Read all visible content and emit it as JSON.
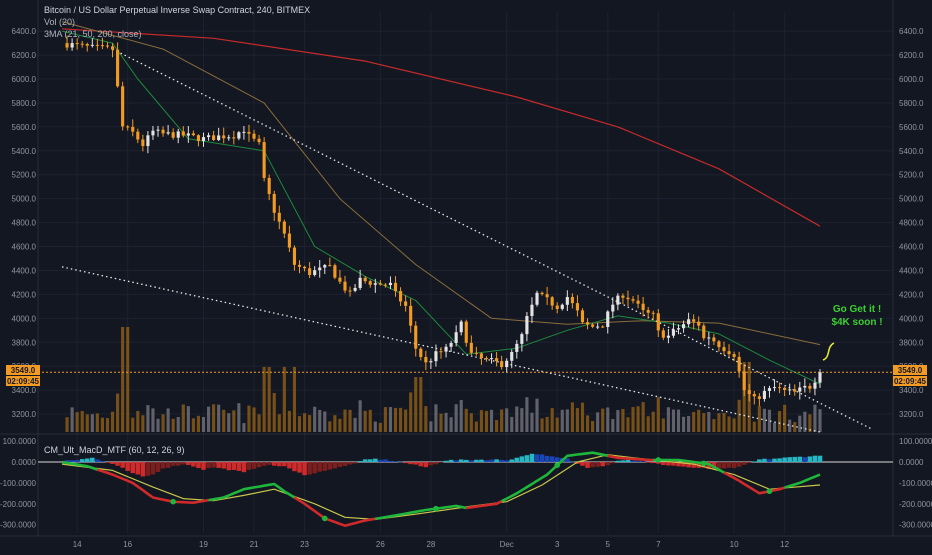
{
  "header": {
    "title": "Bitcoin / US Dollar Perpetual Inverse Swap Contract, 240, BITMEX",
    "vol_label": "Vol (20)",
    "ma_label": "3MA (21, 50, 200, close)"
  },
  "annotation": {
    "line1": "Go Get it !",
    "line2": "$4K soon !"
  },
  "price_tags": {
    "last_price": "3549.0",
    "countdown": "02:09:45"
  },
  "colors": {
    "background": "#131722",
    "candle_up": "#e3e3e3",
    "candle_down": "#f29a22",
    "ma21": "#1e8a3c",
    "ma50": "#8a6d3b",
    "ma200": "#c62a2a",
    "annotation": "#39d12f",
    "macd_line": "#1fb63c",
    "signal_line": "#c8c64a",
    "hist_pos": "#25b7c4",
    "hist_pos_weak": "#1846b8",
    "hist_neg": "#d12a2a",
    "hist_neg_weak": "#7a1e1e"
  },
  "chart_data": [
    {
      "type": "candlestick",
      "title": "Bitcoin / US Dollar Perpetual Inverse Swap Contract, 240, BITMEX",
      "x_tick_labels": [
        "14",
        "16",
        "19",
        "21",
        "23",
        "26",
        "28",
        "Dec",
        "3",
        "5",
        "7",
        "10",
        "12"
      ],
      "y_tick_labels": [
        "3200.0",
        "3400.0",
        "3600.0",
        "3800.0",
        "4000.0",
        "4200.0",
        "4400.0",
        "4600.0",
        "4800.0",
        "5000.0",
        "5200.0",
        "5400.0",
        "5600.0",
        "5800.0",
        "6000.0",
        "6200.0",
        "6400.0"
      ],
      "ylim": [
        3050,
        6560
      ],
      "last_price": 3549,
      "close_path": [
        [
          0,
          6300
        ],
        [
          6,
          6260
        ],
        [
          10,
          6250
        ],
        [
          12,
          5600
        ],
        [
          14,
          5550
        ],
        [
          16,
          5450
        ],
        [
          18,
          5560
        ],
        [
          20,
          5540
        ],
        [
          24,
          5530
        ],
        [
          28,
          5500
        ],
        [
          31,
          5520
        ],
        [
          34,
          5530
        ],
        [
          36,
          5580
        ],
        [
          37,
          5520
        ],
        [
          39,
          5450
        ],
        [
          40,
          5150
        ],
        [
          42,
          4900
        ],
        [
          44,
          4700
        ],
        [
          46,
          4450
        ],
        [
          49,
          4380
        ],
        [
          53,
          4430
        ],
        [
          55,
          4300
        ],
        [
          57,
          4200
        ],
        [
          59,
          4320
        ],
        [
          62,
          4290
        ],
        [
          65,
          4280
        ],
        [
          66,
          4200
        ],
        [
          68,
          4100
        ],
        [
          70,
          3750
        ],
        [
          72,
          3620
        ],
        [
          74,
          3700
        ],
        [
          76,
          3740
        ],
        [
          78,
          3860
        ],
        [
          79,
          3950
        ],
        [
          81,
          3700
        ],
        [
          83,
          3660
        ],
        [
          85,
          3640
        ],
        [
          87,
          3620
        ],
        [
          89,
          3700
        ],
        [
          91,
          3850
        ],
        [
          92,
          4000
        ],
        [
          94,
          4200
        ],
        [
          96,
          4150
        ],
        [
          98,
          4100
        ],
        [
          100,
          4180
        ],
        [
          102,
          4050
        ],
        [
          103,
          3950
        ],
        [
          105,
          3930
        ],
        [
          107,
          3950
        ],
        [
          109,
          4120
        ],
        [
          111,
          4200
        ],
        [
          113,
          4150
        ],
        [
          115,
          4050
        ],
        [
          117,
          4020
        ],
        [
          118,
          3880
        ],
        [
          120,
          3850
        ],
        [
          122,
          3920
        ],
        [
          124,
          3980
        ],
        [
          126,
          3950
        ],
        [
          127,
          3830
        ],
        [
          128,
          3850
        ],
        [
          130,
          3780
        ],
        [
          131,
          3750
        ],
        [
          133,
          3700
        ],
        [
          135,
          3400
        ],
        [
          137,
          3320
        ],
        [
          139,
          3380
        ],
        [
          141,
          3420
        ],
        [
          143,
          3390
        ],
        [
          145,
          3380
        ],
        [
          147,
          3420
        ],
        [
          148,
          3430
        ],
        [
          150,
          3549
        ]
      ],
      "ma21_path": [
        [
          0,
          6400
        ],
        [
          10,
          6300
        ],
        [
          15,
          6000
        ],
        [
          25,
          5500
        ],
        [
          40,
          5400
        ],
        [
          50,
          4600
        ],
        [
          60,
          4350
        ],
        [
          70,
          4150
        ],
        [
          80,
          3700
        ],
        [
          90,
          3750
        ],
        [
          100,
          3900
        ],
        [
          110,
          4020
        ],
        [
          120,
          3960
        ],
        [
          130,
          3870
        ],
        [
          140,
          3650
        ],
        [
          150,
          3450
        ]
      ],
      "ma50_path": [
        [
          0,
          6480
        ],
        [
          20,
          6250
        ],
        [
          40,
          5800
        ],
        [
          55,
          5000
        ],
        [
          70,
          4450
        ],
        [
          85,
          4000
        ],
        [
          100,
          3950
        ],
        [
          115,
          3980
        ],
        [
          130,
          3960
        ],
        [
          150,
          3780
        ]
      ],
      "ma200_path": [
        [
          0,
          6420
        ],
        [
          30,
          6340
        ],
        [
          60,
          6150
        ],
        [
          90,
          5850
        ],
        [
          110,
          5600
        ],
        [
          130,
          5250
        ],
        [
          150,
          4770
        ]
      ],
      "trendlines": [
        {
          "from": [
            10,
            6250
          ],
          "to": [
            160,
            3080
          ]
        },
        {
          "from": [
            0,
            4430
          ],
          "to": [
            150,
            3050
          ]
        }
      ],
      "annotation": "Go Get it !\n$4K soon !"
    },
    {
      "type": "histogram+line",
      "title": "CM_Ult_MacD_MTF (60, 12, 26, 9)",
      "y_tick_labels": [
        "100.0000",
        "0.0000",
        "-100.0000",
        "-200.0000",
        "-300.0000"
      ],
      "ylim": [
        -340,
        120
      ],
      "macd_path": [
        [
          0,
          0
        ],
        [
          5,
          -20
        ],
        [
          10,
          -60
        ],
        [
          14,
          -100
        ],
        [
          18,
          -170
        ],
        [
          22,
          -190
        ],
        [
          26,
          -195
        ],
        [
          32,
          -170
        ],
        [
          36,
          -130
        ],
        [
          42,
          -105
        ],
        [
          44,
          -140
        ],
        [
          48,
          -200
        ],
        [
          52,
          -270
        ],
        [
          56,
          -305
        ],
        [
          60,
          -280
        ],
        [
          65,
          -260
        ],
        [
          72,
          -230
        ],
        [
          78,
          -210
        ],
        [
          80,
          -220
        ],
        [
          86,
          -200
        ],
        [
          90,
          -150
        ],
        [
          96,
          -60
        ],
        [
          100,
          30
        ],
        [
          105,
          45
        ],
        [
          110,
          20
        ],
        [
          116,
          10
        ],
        [
          122,
          10
        ],
        [
          128,
          -10
        ],
        [
          134,
          -90
        ],
        [
          138,
          -150
        ],
        [
          142,
          -130
        ],
        [
          146,
          -100
        ],
        [
          150,
          -60
        ]
      ],
      "signal_path": [
        [
          0,
          -10
        ],
        [
          10,
          -40
        ],
        [
          18,
          -120
        ],
        [
          24,
          -175
        ],
        [
          30,
          -185
        ],
        [
          36,
          -160
        ],
        [
          42,
          -130
        ],
        [
          50,
          -200
        ],
        [
          56,
          -265
        ],
        [
          62,
          -275
        ],
        [
          70,
          -250
        ],
        [
          80,
          -215
        ],
        [
          88,
          -190
        ],
        [
          95,
          -110
        ],
        [
          102,
          0
        ],
        [
          108,
          35
        ],
        [
          115,
          15
        ],
        [
          125,
          -10
        ],
        [
          133,
          -60
        ],
        [
          140,
          -130
        ],
        [
          150,
          -110
        ]
      ],
      "histogram": [
        [
          2,
          10
        ],
        [
          4,
          15
        ],
        [
          6,
          20
        ],
        [
          10,
          -10
        ],
        [
          12,
          -30
        ],
        [
          14,
          -55
        ],
        [
          16,
          -70
        ],
        [
          18,
          -60
        ],
        [
          20,
          -30
        ],
        [
          24,
          -10
        ],
        [
          26,
          -20
        ],
        [
          28,
          -35
        ],
        [
          30,
          -25
        ],
        [
          34,
          -40
        ],
        [
          36,
          -50
        ],
        [
          38,
          -30
        ],
        [
          40,
          -15
        ],
        [
          44,
          -20
        ],
        [
          46,
          -45
        ],
        [
          48,
          -60
        ],
        [
          50,
          -55
        ],
        [
          52,
          -40
        ],
        [
          56,
          -20
        ],
        [
          60,
          10
        ],
        [
          62,
          15
        ],
        [
          64,
          10
        ],
        [
          66,
          5
        ],
        [
          70,
          -15
        ],
        [
          72,
          -25
        ],
        [
          76,
          8
        ],
        [
          80,
          10
        ],
        [
          84,
          12
        ],
        [
          88,
          10
        ],
        [
          90,
          20
        ],
        [
          92,
          35
        ],
        [
          94,
          40
        ],
        [
          96,
          28
        ],
        [
          100,
          15
        ],
        [
          102,
          -10
        ],
        [
          104,
          -25
        ],
        [
          106,
          -20
        ],
        [
          108,
          -15
        ],
        [
          110,
          8
        ],
        [
          112,
          10
        ],
        [
          114,
          6
        ],
        [
          118,
          -10
        ],
        [
          120,
          -15
        ],
        [
          122,
          -20
        ],
        [
          126,
          -30
        ],
        [
          130,
          -35
        ],
        [
          134,
          -25
        ],
        [
          138,
          12
        ],
        [
          142,
          18
        ],
        [
          144,
          22
        ],
        [
          146,
          25
        ],
        [
          148,
          28
        ],
        [
          150,
          30
        ]
      ]
    }
  ]
}
